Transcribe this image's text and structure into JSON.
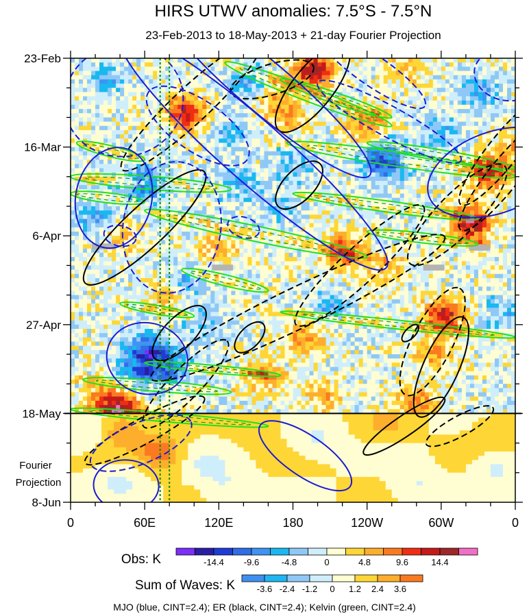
{
  "chart_data": {
    "type": "heatmap",
    "title": "HIRS UTWV anomalies: 7.5°S - 7.5°N",
    "subtitle": "23-Feb-2013 to 18-May-2013 + 21-day Fourier Projection",
    "x_axis": {
      "label_ticks": [
        "0",
        "60E",
        "120E",
        "180",
        "120W",
        "60W",
        "0"
      ],
      "longitudes_east": [
        0,
        60,
        120,
        180,
        240,
        300,
        360
      ]
    },
    "y_axis": {
      "label_ticks": [
        "23-Feb",
        "16-Mar",
        "6-Apr",
        "27-Apr",
        "18-May",
        "8-Jun"
      ],
      "day_offsets": [
        0,
        21,
        42,
        63,
        84,
        105
      ],
      "range_days": [
        0,
        105
      ],
      "observation_end_day": 84,
      "projection_label_line1": "Fourier",
      "projection_label_line2": "Projection"
    },
    "reference_lines_longitude_east": [
      72.5,
      80
    ],
    "missing_data_patches": [
      {
        "lon": 27,
        "day": 44.5,
        "w": 20,
        "h": 1.4
      },
      {
        "lon": 123,
        "day": 49.5,
        "w": 17,
        "h": 1.4
      },
      {
        "lon": 294,
        "day": 49.5,
        "w": 17,
        "h": 1.4
      },
      {
        "lon": 331,
        "day": 44.8,
        "w": 17,
        "h": 1.4
      }
    ],
    "anomaly_features": [
      {
        "lon": 197,
        "day": 3,
        "v": 15
      },
      {
        "lon": 240,
        "day": 15.5,
        "v": 9
      },
      {
        "lon": 93,
        "day": 13,
        "v": 13
      },
      {
        "lon": 165,
        "day": 9,
        "v": 6
      },
      {
        "lon": 178,
        "day": 14,
        "v": 5
      },
      {
        "lon": 270,
        "day": 3,
        "v": 4
      },
      {
        "lon": 355,
        "day": 22,
        "v": 5
      },
      {
        "lon": 338,
        "day": 27,
        "v": 11
      },
      {
        "lon": 325,
        "day": 40,
        "v": 10
      },
      {
        "lon": 320,
        "day": 38,
        "v": 6
      },
      {
        "lon": 220,
        "day": 46,
        "v": 11
      },
      {
        "lon": 255,
        "day": 49,
        "v": 5
      },
      {
        "lon": 303,
        "day": 61,
        "v": 13
      },
      {
        "lon": 295,
        "day": 70,
        "v": 6
      },
      {
        "lon": 280,
        "day": 82,
        "v": 8
      },
      {
        "lon": 155,
        "day": 75,
        "v": 7
      },
      {
        "lon": 190,
        "day": 66,
        "v": 7
      },
      {
        "lon": 205,
        "day": 80,
        "v": 5
      },
      {
        "lon": 120,
        "day": 45,
        "v": 5
      },
      {
        "lon": 40,
        "day": 42,
        "v": 5
      },
      {
        "lon": 42,
        "day": 83.5,
        "v": 15
      },
      {
        "lon": 25,
        "day": 80,
        "v": 7
      },
      {
        "lon": 78,
        "day": 56,
        "v": 6
      },
      {
        "lon": 72,
        "day": 87,
        "v": 6
      },
      {
        "lon": 60,
        "day": 30,
        "v": -8
      },
      {
        "lon": 62,
        "day": 69,
        "v": -11
      },
      {
        "lon": 55,
        "day": 74,
        "v": -9
      },
      {
        "lon": 80,
        "day": 73,
        "v": -9
      },
      {
        "lon": 20,
        "day": 38,
        "v": -6
      },
      {
        "lon": 258,
        "day": 25,
        "v": -7
      },
      {
        "lon": 248,
        "day": 23,
        "v": -8
      },
      {
        "lon": 182,
        "day": 25,
        "v": -5
      },
      {
        "lon": 138,
        "day": 30,
        "v": -6
      },
      {
        "lon": 128,
        "day": 18,
        "v": -5
      },
      {
        "lon": 330,
        "day": 8,
        "v": -6
      },
      {
        "lon": 92,
        "day": 53,
        "v": -6
      },
      {
        "lon": 210,
        "day": 58,
        "v": -5
      },
      {
        "lon": 350,
        "day": 60,
        "v": -5
      },
      {
        "lon": 145,
        "day": 6,
        "v": -6
      },
      {
        "lon": 300,
        "day": 18,
        "v": -5
      },
      {
        "lon": 30,
        "day": 5,
        "v": -5
      },
      {
        "lon": 108,
        "day": 63,
        "v": -4
      },
      {
        "lon": 170,
        "day": 35,
        "v": -4
      }
    ],
    "projection_features": [
      {
        "lon": 72,
        "day": 93,
        "v": 3.2
      },
      {
        "lon": 40,
        "day": 88,
        "v": 2.6
      },
      {
        "lon": 255,
        "day": 86,
        "v": 1.4
      },
      {
        "lon": 345,
        "day": 89,
        "v": 1.2
      },
      {
        "lon": 150,
        "day": 86,
        "v": 1.2
      },
      {
        "lon": 345,
        "day": 97,
        "v": -1.5
      },
      {
        "lon": 200,
        "day": 90,
        "v": -1.4
      },
      {
        "lon": 40,
        "day": 100,
        "v": -1.4
      },
      {
        "lon": 110,
        "day": 96,
        "v": -1.3
      },
      {
        "lon": 280,
        "day": 101,
        "v": -1.3
      },
      {
        "lon": 125,
        "day": 101,
        "v": -1.2
      },
      {
        "lon": 20,
        "day": 88,
        "v": -1.3
      }
    ],
    "kelvin_contours": [
      {
        "lon0": 125,
        "day0": 1,
        "lon1": 260,
        "day1": 16,
        "h": 1.3
      },
      {
        "lon0": 170,
        "day0": 5,
        "lon1": 260,
        "day1": 14,
        "h": 1.0
      },
      {
        "lon0": 175,
        "day0": 20,
        "lon1": 360,
        "day1": 28,
        "h": 1.3
      },
      {
        "lon0": 240,
        "day0": 20,
        "lon1": 360,
        "day1": 26,
        "h": 1.0
      },
      {
        "lon0": 5,
        "day0": 20,
        "lon1": 60,
        "day1": 24,
        "h": 1.0
      },
      {
        "lon0": 0,
        "day0": 28,
        "lon1": 130,
        "day1": 31,
        "h": 1.2
      },
      {
        "lon0": 0,
        "day0": 32,
        "lon1": 60,
        "day1": 34,
        "h": 0.9
      },
      {
        "lon0": 180,
        "day0": 32,
        "lon1": 330,
        "day1": 38,
        "h": 1.0
      },
      {
        "lon0": 60,
        "day0": 36,
        "lon1": 240,
        "day1": 47,
        "h": 1.4
      },
      {
        "lon0": 240,
        "day0": 41,
        "lon1": 330,
        "day1": 44,
        "h": 0.9
      },
      {
        "lon0": 90,
        "day0": 50,
        "lon1": 160,
        "day1": 55,
        "h": 1.0
      },
      {
        "lon0": 40,
        "day0": 58,
        "lon1": 100,
        "day1": 61,
        "h": 0.8
      },
      {
        "lon0": 10,
        "day0": 76,
        "lon1": 130,
        "day1": 79,
        "h": 1.0
      },
      {
        "lon0": 0,
        "day0": 83,
        "lon1": 160,
        "day1": 87,
        "h": 0.8
      },
      {
        "lon0": 170,
        "day0": 60,
        "lon1": 360,
        "day1": 66,
        "h": 0.8
      },
      {
        "lon0": 60,
        "day0": 72,
        "lon1": 170,
        "day1": 75,
        "h": 0.7
      }
    ],
    "mjo_contours": [
      {
        "lon": 43,
        "day": 10,
        "rlon": 22,
        "rday": 11,
        "rot": -0.25,
        "dash": true
      },
      {
        "lon": 35,
        "day": 33,
        "rlon": 14,
        "rday": 10,
        "rot": 0.2,
        "dash": false
      },
      {
        "lon": 82,
        "day": 40,
        "rlon": 18,
        "rday": 13,
        "rot": 0.15,
        "dash": true
      },
      {
        "lon": 148,
        "day": 22,
        "rlon": 65,
        "rday": 6,
        "rot": 0.72,
        "dash": false
      },
      {
        "lon": 158,
        "day": 7,
        "rlon": 50,
        "rday": 5,
        "rot": 0.7,
        "dash": false
      },
      {
        "lon": 103,
        "day": 16,
        "rlon": 22,
        "rday": 5,
        "rot": 0.6,
        "dash": true
      },
      {
        "lon": 258,
        "day": 15,
        "rlon": 30,
        "rday": 3,
        "rot": 0.5,
        "dash": true
      },
      {
        "lon": 245,
        "day": 3,
        "rlon": 23,
        "rday": 3,
        "rot": 0.6,
        "dash": true
      },
      {
        "lon": 344,
        "day": 27,
        "rlon": 26,
        "rday": 8,
        "rot": -0.35,
        "dash": false
      },
      {
        "lon": 353,
        "day": 4,
        "rlon": 12,
        "rday": 5,
        "rot": 0.2,
        "dash": true
      },
      {
        "lon": 62,
        "day": 71,
        "rlon": 15,
        "rday": 7,
        "rot": 0.25,
        "dash": false
      },
      {
        "lon": 190,
        "day": 94,
        "rlon": 20,
        "rday": 4,
        "rot": 0.6,
        "dash": false
      },
      {
        "lon": 45,
        "day": 101,
        "rlon": 12,
        "rday": 5,
        "rot": 0.05,
        "dash": false
      },
      {
        "lon": 57,
        "day": 91,
        "rlon": 20,
        "rday": 4,
        "rot": -0.4,
        "dash": true
      },
      {
        "lon": 140,
        "day": 40,
        "rlon": 6,
        "rday": 2,
        "rot": 0.3,
        "dash": true
      },
      {
        "lon": 40,
        "day": 42,
        "rlon": 6,
        "rday": 2,
        "rot": 0.2,
        "dash": true
      }
    ],
    "er_contours": [
      {
        "lon": 60,
        "day": 40,
        "rlon": 30,
        "rday": 4,
        "rot": -0.75,
        "dash": false
      },
      {
        "lon": 98,
        "day": 11,
        "rlon": 35,
        "rday": 3.5,
        "rot": -0.75,
        "dash": true
      },
      {
        "lon": 163,
        "day": 5,
        "rlon": 16,
        "rday": 3,
        "rot": -0.3,
        "dash": true
      },
      {
        "lon": 196,
        "day": 7,
        "rlon": 20,
        "rday": 4,
        "rot": -0.9,
        "dash": false
      },
      {
        "lon": 185,
        "day": 30,
        "rlon": 11,
        "rday": 3,
        "rot": -0.8,
        "dash": false
      },
      {
        "lon": 184,
        "day": 59,
        "rlon": 60,
        "rday": 4,
        "rot": -0.45,
        "dash": true
      },
      {
        "lon": 234,
        "day": 49,
        "rlon": 32,
        "rday": 3.5,
        "rot": -0.75,
        "dash": true
      },
      {
        "lon": 313,
        "day": 37,
        "rlon": 25,
        "rday": 4,
        "rot": -0.8,
        "dash": true
      },
      {
        "lon": 350,
        "day": 22,
        "rlon": 25,
        "rday": 3,
        "rot": -0.9,
        "dash": true
      },
      {
        "lon": 350,
        "day": 28,
        "rlon": 25,
        "rday": 3,
        "rot": -0.9,
        "dash": true
      },
      {
        "lon": 293,
        "day": 67,
        "rlon": 22,
        "rday": 4,
        "rot": -1.1,
        "dash": true
      },
      {
        "lon": 300,
        "day": 73,
        "rlon": 20,
        "rday": 3.5,
        "rot": -1.15,
        "dash": false
      },
      {
        "lon": 93,
        "day": 77,
        "rlon": 22,
        "rday": 3,
        "rot": -0.8,
        "dash": true
      },
      {
        "lon": 88,
        "day": 65,
        "rlon": 13,
        "rday": 3,
        "rot": -0.8,
        "dash": false
      },
      {
        "lon": 60,
        "day": 88,
        "rlon": 25,
        "rday": 2.5,
        "rot": -0.5,
        "dash": true
      },
      {
        "lon": 270,
        "day": 87,
        "rlon": 18,
        "rday": 2,
        "rot": -0.6,
        "dash": false
      },
      {
        "lon": 315,
        "day": 87,
        "rlon": 14,
        "rday": 2,
        "rot": -0.5,
        "dash": true
      },
      {
        "lon": 145,
        "day": 66,
        "rlon": 7,
        "rday": 2,
        "rot": -0.8,
        "dash": false
      },
      {
        "lon": 275,
        "day": 65,
        "rlon": 4,
        "rday": 1,
        "rot": -0.8,
        "dash": false
      }
    ],
    "obs_colorbar": {
      "label": "Obs: K",
      "colors": [
        "#7b2ff7",
        "#2a1ea5",
        "#1f3cd6",
        "#2f6ee6",
        "#3f93f2",
        "#19b8f0",
        "#8fc8f6",
        "#cfeefb",
        "#fffdd2",
        "#fed636",
        "#fdae2c",
        "#fb7a20",
        "#ef2e14",
        "#c51a1a",
        "#9e2727",
        "#f26fc6"
      ],
      "tick_labels": [
        "-14.4",
        "-9.6",
        "-4.8",
        "0",
        "4.8",
        "9.6",
        "14.4"
      ],
      "tick_boundary_index": [
        2,
        4,
        6,
        8,
        10,
        12,
        14
      ],
      "levels": [
        -16.8,
        -14.4,
        -12,
        -9.6,
        -7.2,
        -4.8,
        -2.4,
        0,
        2.4,
        4.8,
        7.2,
        9.6,
        12,
        14.4,
        16.8
      ]
    },
    "waves_colorbar": {
      "label": "Sum of Waves: K",
      "colors": [
        "#3f8ff0",
        "#1fb6f2",
        "#8fc8f6",
        "#cfeefb",
        "#fffdd2",
        "#fed636",
        "#fdae2c",
        "#fb7a20"
      ],
      "tick_labels": [
        "-3.6",
        "-2.4",
        "-1.2",
        "0",
        "1.2",
        "2.4",
        "3.6"
      ],
      "tick_boundary_index": [
        1,
        2,
        3,
        4,
        5,
        6,
        7
      ],
      "levels": [
        -4.8,
        -3.6,
        -2.4,
        -1.2,
        0,
        1.2,
        2.4,
        3.6,
        4.8
      ]
    },
    "footer_note": "MJO (blue, CINT=2.4); ER (black, CINT=2.4); Kelvin (green, CINT=2.4)",
    "colors": {
      "mjo": "#1a1ad6",
      "er": "#000000",
      "kelvin": "#1fe01f",
      "kelvin_inner": "#0aa00a",
      "reference_line": "#0a8a0a",
      "missing": "#b4b4b4"
    }
  }
}
